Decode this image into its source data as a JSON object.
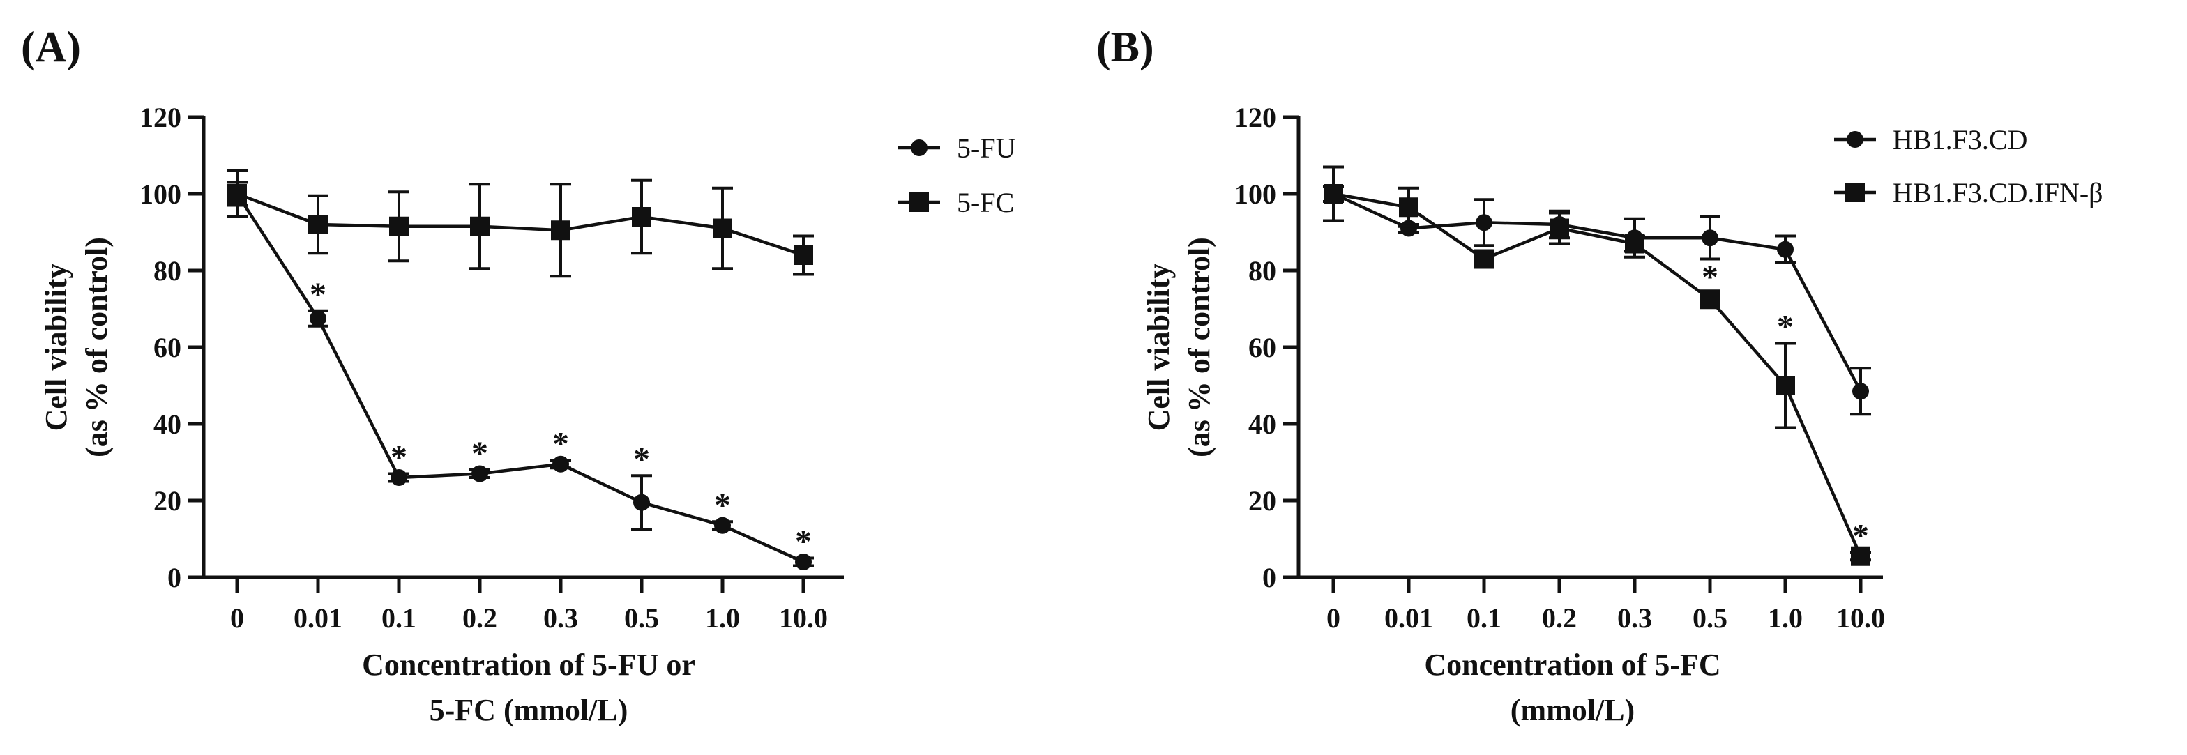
{
  "figure": {
    "background": "#ffffff",
    "ink": "#111111"
  },
  "chart_data": [
    {
      "type": "line",
      "panel_label": "(A)",
      "title": "",
      "categories": [
        "0",
        "0.01",
        "0.1",
        "0.2",
        "0.3",
        "0.5",
        "1.0",
        "10.0"
      ],
      "xlabel_lines": [
        "Concentration of 5-FU or",
        "5-FC (mmol/L)"
      ],
      "ylabel_lines": [
        "Cell viability",
        "(as % of control)"
      ],
      "ylim": [
        0,
        120
      ],
      "yticks": [
        0,
        20,
        40,
        60,
        80,
        100,
        120
      ],
      "grid": false,
      "legend_position": "right",
      "series": [
        {
          "name": "5-FU",
          "marker": "circle",
          "values": [
            100,
            67.5,
            26,
            27,
            29.5,
            19.5,
            13.5,
            4
          ],
          "error": [
            3,
            2,
            1,
            1,
            1,
            7,
            1,
            1
          ],
          "significant": [
            false,
            true,
            true,
            true,
            true,
            true,
            true,
            true
          ]
        },
        {
          "name": "5-FC",
          "marker": "square",
          "values": [
            100,
            92,
            91.5,
            91.5,
            90.5,
            94,
            91,
            84
          ],
          "error": [
            6,
            7.5,
            9,
            11,
            12,
            9.5,
            10.5,
            5
          ],
          "significant": [
            false,
            false,
            false,
            false,
            false,
            false,
            false,
            false
          ]
        }
      ],
      "significance_symbol": "*"
    },
    {
      "type": "line",
      "panel_label": "(B)",
      "title": "",
      "categories": [
        "0",
        "0.01",
        "0.1",
        "0.2",
        "0.3",
        "0.5",
        "1.0",
        "10.0"
      ],
      "xlabel_lines": [
        "Concentration of 5-FC",
        "(mmol/L)"
      ],
      "ylabel_lines": [
        "Cell viability",
        "(as % of control)"
      ],
      "ylim": [
        0,
        120
      ],
      "yticks": [
        0,
        20,
        40,
        60,
        80,
        100,
        120
      ],
      "grid": false,
      "legend_position": "right",
      "series": [
        {
          "name": "HB1.F3.CD",
          "marker": "circle",
          "values": [
            100,
            91,
            92.5,
            92,
            88.5,
            88.5,
            85.5,
            48.5
          ],
          "error": [
            7,
            1,
            6,
            3.5,
            5,
            5.5,
            3.5,
            6
          ],
          "significant": [
            false,
            false,
            false,
            false,
            false,
            false,
            false,
            false
          ]
        },
        {
          "name": "HB1.F3.CD.IFN-β",
          "marker": "square",
          "values": [
            100,
            96.5,
            83,
            91,
            87,
            72.5,
            50,
            5.5
          ],
          "error": [
            2,
            5,
            1,
            4,
            2,
            1.5,
            11,
            1
          ],
          "significant": [
            false,
            false,
            false,
            false,
            false,
            true,
            true,
            true
          ]
        }
      ],
      "significance_symbol": "*"
    }
  ]
}
